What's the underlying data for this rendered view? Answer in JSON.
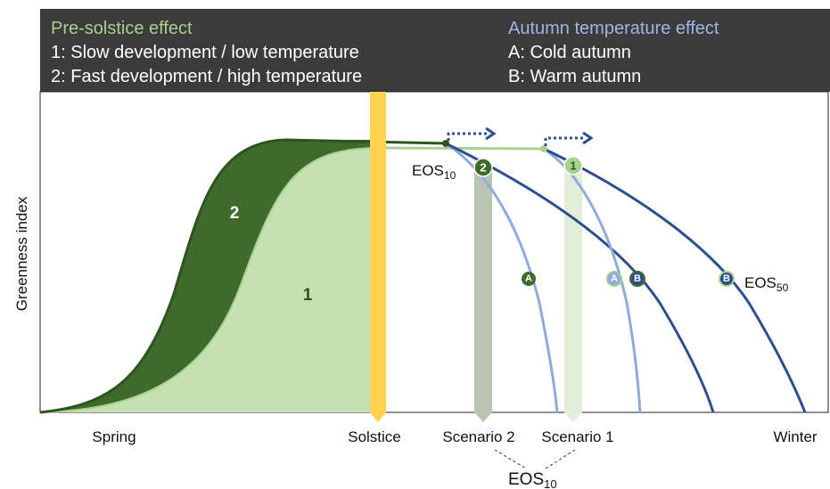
{
  "header": {
    "left": {
      "title": "Pre-solstice effect",
      "lines": [
        "1: Slow development / low temperature",
        "2: Fast development / high temperature"
      ]
    },
    "right": {
      "title": "Autumn temperature effect",
      "lines": [
        "A: Cold autumn",
        "B: Warm autumn"
      ]
    }
  },
  "y_axis_label": "Greenness index",
  "area_labels": [
    "2",
    "1"
  ],
  "eos10_label": {
    "main": "EOS",
    "sub": "10"
  },
  "scenario_markers": [
    "2",
    "1"
  ],
  "autumn_markers": [
    "A",
    "B",
    "A",
    "B",
    "B"
  ],
  "eos50_label": {
    "main": "EOS",
    "sub": "50"
  },
  "x_labels": [
    "Spring",
    "Solstice",
    "Scenario 2",
    "Scenario 1",
    "Winter"
  ],
  "bottom_label": {
    "main": "EOS",
    "sub": "10"
  }
}
